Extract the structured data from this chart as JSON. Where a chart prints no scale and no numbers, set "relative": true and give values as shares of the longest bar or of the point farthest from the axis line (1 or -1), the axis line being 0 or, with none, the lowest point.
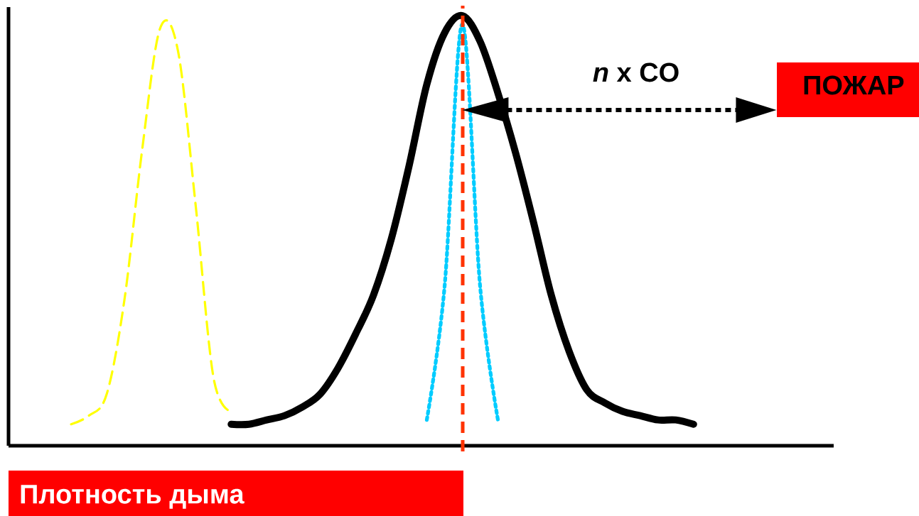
{
  "chart_data": {
    "type": "line",
    "relative": true,
    "categories": [
      null,
      null,
      null,
      null,
      null,
      null,
      null,
      null,
      null,
      null,
      null,
      null,
      null,
      null,
      null,
      null,
      null,
      null,
      null,
      null,
      null,
      null,
      null,
      null,
      null,
      null,
      null,
      null,
      null,
      null,
      null,
      null,
      null,
      null,
      null,
      null
    ],
    "series": [
      {
        "color": "#ffff00",
        "line_style": "dashed",
        "values": [
          0.05,
          0.07,
          0.12,
          0.34,
          0.69,
          0.97,
          0.92,
          0.56,
          0.16,
          0.08,
          null,
          null,
          null,
          null,
          null,
          null,
          null,
          null,
          null,
          null,
          null,
          null,
          null,
          null,
          null,
          null,
          null,
          null,
          null,
          null,
          null,
          null,
          null,
          null,
          null,
          null
        ]
      },
      {
        "color": "#000000",
        "line_style": "solid",
        "values": [
          null,
          null,
          null,
          null,
          null,
          null,
          null,
          null,
          null,
          0.05,
          0.05,
          0.06,
          0.07,
          0.09,
          0.12,
          0.18,
          0.26,
          0.35,
          0.48,
          0.65,
          0.84,
          0.96,
          1.0,
          0.94,
          0.82,
          0.68,
          0.52,
          0.35,
          0.22,
          0.13,
          0.1,
          0.08,
          0.07,
          0.06,
          0.06,
          0.05
        ]
      },
      {
        "color": "#00ccff",
        "line_style": "dotted",
        "values": [
          null,
          null,
          null,
          null,
          null,
          null,
          null,
          null,
          null,
          null,
          null,
          null,
          null,
          null,
          null,
          null,
          null,
          null,
          null,
          null,
          0.06,
          0.37,
          0.98,
          0.37,
          0.06,
          null,
          null,
          null,
          null,
          null,
          null,
          null,
          null,
          null,
          null,
          null
        ]
      }
    ],
    "annotations": [
      "*n* x CO",
      "ПОЖАР",
      "Плотность дыма"
    ],
    "marker": "none"
  }
}
